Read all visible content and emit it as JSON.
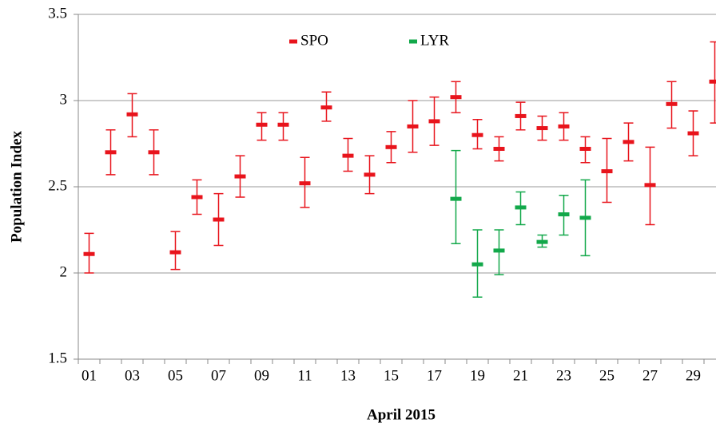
{
  "chart_data": {
    "type": "errorbar",
    "x_label": "April 2015",
    "y_label": "Population Index",
    "categories": [
      "01",
      null,
      "03",
      null,
      "05",
      null,
      "07",
      null,
      "09",
      null,
      "11",
      null,
      "13",
      null,
      "15",
      null,
      "17",
      null,
      "19",
      null,
      "21",
      null,
      "23",
      null,
      "25",
      null,
      "27",
      null,
      "29",
      null
    ],
    "series": [
      {
        "name": "SPO",
        "color": "#e8141c",
        "values": [
          2.11,
          2.7,
          2.92,
          2.7,
          2.12,
          2.44,
          2.31,
          2.56,
          2.86,
          2.86,
          2.52,
          2.96,
          2.68,
          2.57,
          2.73,
          2.85,
          2.88,
          3.02,
          2.8,
          2.72,
          2.91,
          2.84,
          2.85,
          2.72,
          2.59,
          2.76,
          2.51,
          2.98,
          2.81,
          3.11
        ],
        "lower": [
          2.0,
          2.57,
          2.79,
          2.57,
          2.02,
          2.34,
          2.16,
          2.44,
          2.77,
          2.77,
          2.38,
          2.88,
          2.59,
          2.46,
          2.64,
          2.7,
          2.74,
          2.93,
          2.72,
          2.65,
          2.83,
          2.77,
          2.77,
          2.64,
          2.41,
          2.65,
          2.28,
          2.84,
          2.68,
          2.87
        ],
        "upper": [
          2.23,
          2.83,
          3.04,
          2.83,
          2.24,
          2.54,
          2.46,
          2.68,
          2.93,
          2.93,
          2.67,
          3.05,
          2.78,
          2.68,
          2.82,
          3.0,
          3.02,
          3.11,
          2.89,
          2.79,
          2.99,
          2.91,
          2.93,
          2.79,
          2.78,
          2.87,
          2.73,
          3.11,
          2.94,
          3.34
        ]
      },
      {
        "name": "LYR",
        "color": "#12a84a",
        "values": [
          null,
          null,
          null,
          null,
          null,
          null,
          null,
          null,
          null,
          null,
          null,
          null,
          null,
          null,
          null,
          null,
          null,
          2.43,
          2.05,
          2.13,
          2.38,
          2.18,
          2.34,
          2.32,
          null,
          null,
          null,
          null,
          null,
          null
        ],
        "lower": [
          null,
          null,
          null,
          null,
          null,
          null,
          null,
          null,
          null,
          null,
          null,
          null,
          null,
          null,
          null,
          null,
          null,
          2.17,
          1.86,
          1.99,
          2.28,
          2.15,
          2.22,
          2.1,
          null,
          null,
          null,
          null,
          null,
          null
        ],
        "upper": [
          null,
          null,
          null,
          null,
          null,
          null,
          null,
          null,
          null,
          null,
          null,
          null,
          null,
          null,
          null,
          null,
          null,
          2.71,
          2.25,
          2.25,
          2.47,
          2.22,
          2.45,
          2.54,
          null,
          null,
          null,
          null,
          null,
          null
        ]
      }
    ],
    "ylim": [
      1.5,
      3.5
    ],
    "yticks": [
      1.5,
      2,
      2.5,
      3,
      3.5
    ],
    "grid": true,
    "legend": "top"
  }
}
